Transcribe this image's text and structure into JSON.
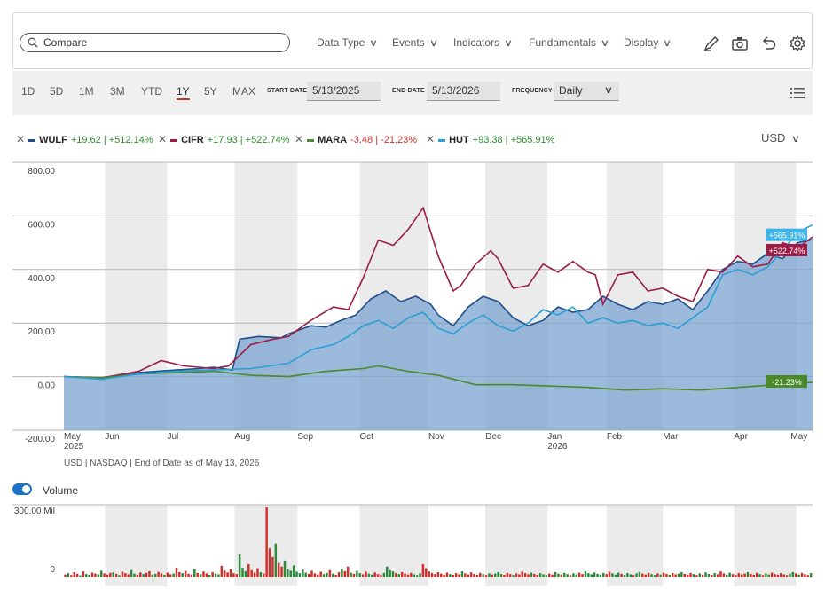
{
  "toolbar": {
    "search_label": "Compare",
    "menus": [
      "Data Type",
      "Events",
      "Indicators",
      "Fundamentals",
      "Display"
    ],
    "icons": [
      "draw-pencil-icon",
      "camera-icon",
      "undo-icon",
      "gear-icon"
    ]
  },
  "range": {
    "buttons": [
      "1D",
      "5D",
      "1M",
      "3M",
      "YTD",
      "1Y",
      "5Y",
      "MAX"
    ],
    "active": "1Y",
    "start_label": "START DATE",
    "start_value": "5/13/2025",
    "end_label": "END DATE",
    "end_value": "5/13/2026",
    "freq_label": "FREQUENCY",
    "freq_value": "Daily"
  },
  "legend": [
    {
      "symbol": "WULF",
      "change": "+19.62 | +512.14%",
      "color": "#1f4e8c",
      "direction": "up"
    },
    {
      "symbol": "CIFR",
      "change": "+17.93 | +522.74%",
      "color": "#9b1d45",
      "direction": "up"
    },
    {
      "symbol": "MARA",
      "change": "-3.48 | -21.23%",
      "color": "#4a8a2a",
      "direction": "down"
    },
    {
      "symbol": "HUT",
      "change": "+93.38 | +565.91%",
      "color": "#2a9fd6",
      "direction": "up"
    }
  ],
  "currency": "USD",
  "footnote": "USD | NASDAQ | End of Date as of May 13, 2026",
  "volume_label": "Volume",
  "chart_data": {
    "type": "line",
    "y_unit": "percent change",
    "ylim": [
      -200,
      800
    ],
    "y_ticks": [
      "800.00",
      "600.00",
      "400.00",
      "200.00",
      "0.00",
      "-200.00"
    ],
    "y_tick_values": [
      800,
      600,
      400,
      200,
      0,
      -200
    ],
    "x_ticks": [
      {
        "label": "May",
        "sub": "2025",
        "t": 0.0
      },
      {
        "label": "Jun",
        "sub": "",
        "t": 0.055
      },
      {
        "label": "Jul",
        "sub": "",
        "t": 0.138
      },
      {
        "label": "Aug",
        "sub": "",
        "t": 0.228
      },
      {
        "label": "Sep",
        "sub": "",
        "t": 0.312
      },
      {
        "label": "Oct",
        "sub": "",
        "t": 0.395
      },
      {
        "label": "Nov",
        "sub": "",
        "t": 0.487
      },
      {
        "label": "Dec",
        "sub": "",
        "t": 0.563
      },
      {
        "label": "Jan",
        "sub": "2026",
        "t": 0.646
      },
      {
        "label": "Feb",
        "sub": "",
        "t": 0.725
      },
      {
        "label": "Mar",
        "sub": "",
        "t": 0.8
      },
      {
        "label": "Apr",
        "sub": "",
        "t": 0.895
      },
      {
        "label": "May",
        "sub": "",
        "t": 0.978
      }
    ],
    "series": [
      {
        "name": "WULF",
        "color": "#1f4e8c",
        "fill": true,
        "end_label": "+512.14%",
        "points": [
          [
            0,
            0
          ],
          [
            0.05,
            -5
          ],
          [
            0.1,
            15
          ],
          [
            0.15,
            25
          ],
          [
            0.18,
            30
          ],
          [
            0.2,
            35
          ],
          [
            0.225,
            25
          ],
          [
            0.235,
            140
          ],
          [
            0.26,
            150
          ],
          [
            0.29,
            145
          ],
          [
            0.3,
            160
          ],
          [
            0.33,
            190
          ],
          [
            0.35,
            185
          ],
          [
            0.37,
            210
          ],
          [
            0.39,
            230
          ],
          [
            0.41,
            290
          ],
          [
            0.43,
            320
          ],
          [
            0.45,
            280
          ],
          [
            0.47,
            300
          ],
          [
            0.49,
            270
          ],
          [
            0.5,
            230
          ],
          [
            0.52,
            190
          ],
          [
            0.54,
            260
          ],
          [
            0.56,
            300
          ],
          [
            0.58,
            280
          ],
          [
            0.6,
            220
          ],
          [
            0.62,
            190
          ],
          [
            0.64,
            210
          ],
          [
            0.66,
            260
          ],
          [
            0.68,
            240
          ],
          [
            0.7,
            250
          ],
          [
            0.72,
            300
          ],
          [
            0.74,
            270
          ],
          [
            0.76,
            250
          ],
          [
            0.78,
            280
          ],
          [
            0.8,
            270
          ],
          [
            0.82,
            290
          ],
          [
            0.84,
            250
          ],
          [
            0.86,
            320
          ],
          [
            0.88,
            400
          ],
          [
            0.9,
            430
          ],
          [
            0.92,
            420
          ],
          [
            0.94,
            460
          ],
          [
            0.96,
            440
          ],
          [
            0.98,
            500
          ],
          [
            1.0,
            512
          ]
        ]
      },
      {
        "name": "CIFR",
        "color": "#9b1d45",
        "fill": false,
        "end_label": "+522.74%",
        "points": [
          [
            0,
            0
          ],
          [
            0.05,
            -5
          ],
          [
            0.1,
            20
          ],
          [
            0.13,
            60
          ],
          [
            0.16,
            40
          ],
          [
            0.2,
            30
          ],
          [
            0.22,
            40
          ],
          [
            0.25,
            120
          ],
          [
            0.28,
            140
          ],
          [
            0.3,
            150
          ],
          [
            0.33,
            210
          ],
          [
            0.36,
            260
          ],
          [
            0.38,
            250
          ],
          [
            0.4,
            370
          ],
          [
            0.42,
            510
          ],
          [
            0.44,
            490
          ],
          [
            0.46,
            550
          ],
          [
            0.48,
            630
          ],
          [
            0.5,
            450
          ],
          [
            0.52,
            320
          ],
          [
            0.53,
            340
          ],
          [
            0.55,
            420
          ],
          [
            0.57,
            470
          ],
          [
            0.58,
            440
          ],
          [
            0.6,
            330
          ],
          [
            0.62,
            340
          ],
          [
            0.64,
            420
          ],
          [
            0.66,
            390
          ],
          [
            0.68,
            430
          ],
          [
            0.7,
            390
          ],
          [
            0.71,
            380
          ],
          [
            0.72,
            270
          ],
          [
            0.74,
            380
          ],
          [
            0.76,
            390
          ],
          [
            0.78,
            320
          ],
          [
            0.8,
            330
          ],
          [
            0.82,
            300
          ],
          [
            0.84,
            280
          ],
          [
            0.86,
            400
          ],
          [
            0.88,
            390
          ],
          [
            0.9,
            450
          ],
          [
            0.92,
            410
          ],
          [
            0.94,
            420
          ],
          [
            0.96,
            500
          ],
          [
            0.98,
            480
          ],
          [
            1.0,
            522
          ]
        ]
      },
      {
        "name": "MARA",
        "color": "#4a8a2a",
        "fill": false,
        "end_label": "-21.23%",
        "points": [
          [
            0,
            0
          ],
          [
            0.05,
            -5
          ],
          [
            0.1,
            10
          ],
          [
            0.15,
            15
          ],
          [
            0.2,
            20
          ],
          [
            0.25,
            5
          ],
          [
            0.3,
            0
          ],
          [
            0.35,
            20
          ],
          [
            0.4,
            30
          ],
          [
            0.42,
            40
          ],
          [
            0.46,
            20
          ],
          [
            0.5,
            5
          ],
          [
            0.55,
            -30
          ],
          [
            0.6,
            -30
          ],
          [
            0.65,
            -35
          ],
          [
            0.7,
            -40
          ],
          [
            0.75,
            -50
          ],
          [
            0.8,
            -45
          ],
          [
            0.85,
            -50
          ],
          [
            0.9,
            -40
          ],
          [
            0.95,
            -30
          ],
          [
            1.0,
            -21
          ]
        ]
      },
      {
        "name": "HUT",
        "color": "#2a9fd6",
        "fill": false,
        "end_label": "+565.91%",
        "points": [
          [
            0,
            0
          ],
          [
            0.05,
            -10
          ],
          [
            0.1,
            10
          ],
          [
            0.15,
            20
          ],
          [
            0.2,
            25
          ],
          [
            0.25,
            30
          ],
          [
            0.3,
            50
          ],
          [
            0.33,
            100
          ],
          [
            0.36,
            120
          ],
          [
            0.38,
            150
          ],
          [
            0.4,
            190
          ],
          [
            0.42,
            210
          ],
          [
            0.44,
            180
          ],
          [
            0.46,
            220
          ],
          [
            0.48,
            240
          ],
          [
            0.5,
            180
          ],
          [
            0.52,
            160
          ],
          [
            0.54,
            200
          ],
          [
            0.56,
            230
          ],
          [
            0.58,
            190
          ],
          [
            0.6,
            170
          ],
          [
            0.62,
            200
          ],
          [
            0.64,
            250
          ],
          [
            0.66,
            230
          ],
          [
            0.68,
            260
          ],
          [
            0.7,
            200
          ],
          [
            0.72,
            220
          ],
          [
            0.74,
            200
          ],
          [
            0.76,
            210
          ],
          [
            0.78,
            190
          ],
          [
            0.8,
            200
          ],
          [
            0.82,
            180
          ],
          [
            0.84,
            220
          ],
          [
            0.86,
            260
          ],
          [
            0.88,
            380
          ],
          [
            0.9,
            400
          ],
          [
            0.92,
            380
          ],
          [
            0.94,
            410
          ],
          [
            0.96,
            470
          ],
          [
            0.98,
            540
          ],
          [
            1.0,
            566
          ]
        ]
      }
    ],
    "volume": {
      "ylim": [
        0,
        300
      ],
      "unit": "Mil",
      "y_ticks": [
        "300.00 Mil",
        "0"
      ],
      "up_color": "#2e8b3e",
      "down_color": "#d0312d",
      "bars": [
        12,
        18,
        10,
        22,
        15,
        9,
        25,
        14,
        11,
        20,
        16,
        13,
        28,
        17,
        12,
        19,
        22,
        15,
        10,
        24,
        18,
        13,
        30,
        16,
        11,
        21,
        14,
        19,
        26,
        12,
        15,
        23,
        17,
        11,
        20,
        13,
        16,
        40,
        22,
        18,
        27,
        15,
        12,
        33,
        19,
        14,
        25,
        17,
        11,
        22,
        16,
        13,
        48,
        28,
        21,
        35,
        18,
        14,
        95,
        40,
        26,
        55,
        30,
        20,
        38,
        22,
        16,
        290,
        120,
        85,
        140,
        60,
        45,
        70,
        35,
        28,
        50,
        24,
        18,
        32,
        20,
        15,
        28,
        17,
        12,
        24,
        14,
        19,
        30,
        16,
        11,
        22,
        35,
        26,
        45,
        20,
        15,
        27,
        18,
        13,
        24,
        16,
        12,
        21,
        14,
        10,
        19,
        45,
        30,
        25,
        18,
        14,
        22,
        16,
        12,
        19,
        13,
        10,
        17,
        55,
        38,
        25,
        19,
        14,
        22,
        16,
        12,
        20,
        14,
        11,
        18,
        13,
        25,
        17,
        12,
        21,
        15,
        11,
        19,
        14,
        10,
        17,
        12,
        16,
        22,
        15,
        11,
        19,
        14,
        10,
        17,
        13,
        24,
        18,
        13,
        20,
        15,
        11,
        18,
        13,
        10,
        16,
        12,
        22,
        16,
        12,
        19,
        14,
        10,
        17,
        12,
        20,
        14,
        26,
        18,
        13,
        21,
        15,
        11,
        19,
        14,
        24,
        17,
        12,
        20,
        15,
        11,
        18,
        13,
        10,
        17,
        23,
        16,
        12,
        19,
        14,
        10,
        17,
        12,
        20,
        15,
        11,
        18,
        13,
        16,
        22,
        15,
        11,
        19,
        14,
        10,
        17,
        12,
        21,
        15,
        11,
        18,
        13,
        25,
        17,
        12,
        20,
        14,
        10,
        18,
        13,
        16,
        22,
        15,
        11,
        19,
        14,
        10,
        17,
        12,
        20,
        14,
        11,
        18,
        13,
        10,
        16,
        22,
        17,
        12,
        19,
        14,
        10,
        18
      ],
      "up_flags_seed": 7
    }
  }
}
